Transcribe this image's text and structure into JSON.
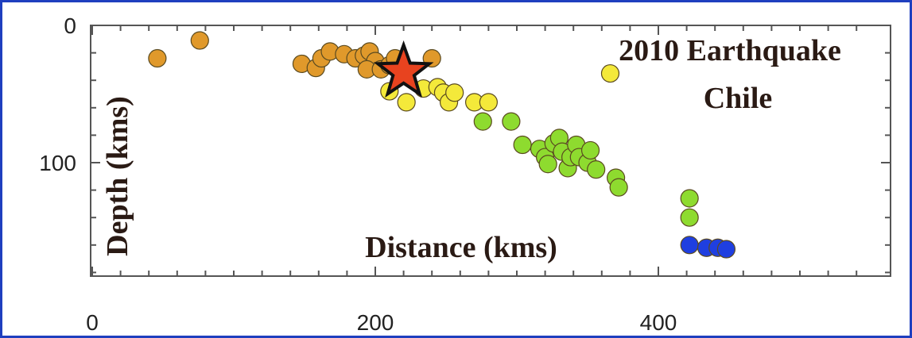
{
  "chart_data": {
    "type": "scatter",
    "title_lines": [
      "2010 Earthquake",
      "Chile"
    ],
    "xlabel": "Distance (kms)",
    "ylabel": "Depth (kms)",
    "xlim": [
      0,
      550
    ],
    "ylim": [
      180,
      0
    ],
    "x_ticks": [
      0,
      200,
      400
    ],
    "y_ticks": [
      0,
      100
    ],
    "grid": false,
    "colors": {
      "orange": "#e0992b",
      "yellow": "#f4e93a",
      "green": "#8edb2f",
      "blue": "#1f3fe0",
      "star": "#e8431f",
      "frame": "#1f3fbf"
    },
    "series": [
      {
        "color": "orange",
        "points": [
          [
            46,
            24
          ],
          [
            76,
            11
          ],
          [
            148,
            28
          ],
          [
            158,
            31
          ],
          [
            162,
            24
          ],
          [
            168,
            19
          ],
          [
            178,
            21
          ],
          [
            186,
            24
          ],
          [
            192,
            22
          ],
          [
            196,
            19
          ],
          [
            200,
            26
          ],
          [
            194,
            32
          ],
          [
            204,
            32
          ],
          [
            210,
            29
          ],
          [
            214,
            24
          ],
          [
            240,
            24
          ]
        ]
      },
      {
        "color": "yellow",
        "points": [
          [
            210,
            48
          ],
          [
            222,
            56
          ],
          [
            234,
            46
          ],
          [
            244,
            45
          ],
          [
            248,
            49
          ],
          [
            252,
            56
          ],
          [
            256,
            49
          ],
          [
            270,
            56
          ],
          [
            280,
            56
          ],
          [
            366,
            35
          ]
        ]
      },
      {
        "color": "green",
        "points": [
          [
            276,
            70
          ],
          [
            296,
            70
          ],
          [
            304,
            87
          ],
          [
            316,
            90
          ],
          [
            320,
            96
          ],
          [
            322,
            101
          ],
          [
            326,
            86
          ],
          [
            330,
            82
          ],
          [
            332,
            92
          ],
          [
            336,
            104
          ],
          [
            338,
            96
          ],
          [
            342,
            87
          ],
          [
            344,
            96
          ],
          [
            350,
            100
          ],
          [
            352,
            91
          ],
          [
            356,
            105
          ],
          [
            370,
            111
          ],
          [
            372,
            118
          ],
          [
            422,
            126
          ],
          [
            422,
            140
          ]
        ]
      },
      {
        "color": "blue",
        "points": [
          [
            422,
            160
          ],
          [
            434,
            162
          ],
          [
            442,
            162
          ],
          [
            448,
            163
          ]
        ]
      }
    ],
    "mainshock": {
      "x": 220,
      "y": 34
    }
  }
}
